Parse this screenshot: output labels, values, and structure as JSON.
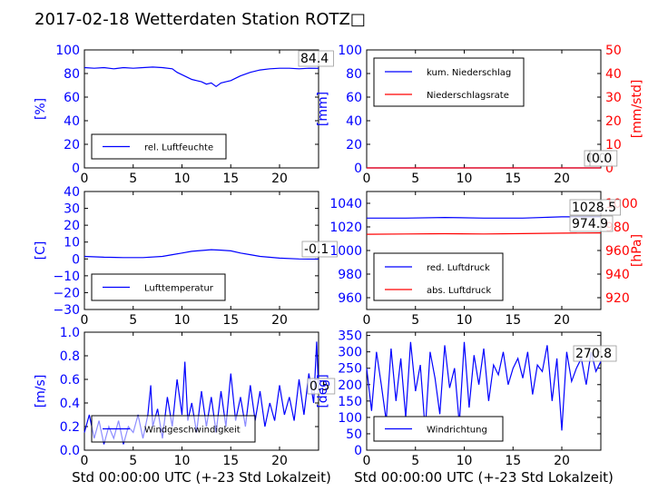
{
  "page_title": "2017-02-18 Wetterdaten Station ROTZ□",
  "colors": {
    "blue": "#0000ff",
    "red": "#ff0000",
    "black": "#000000",
    "light_blue": "#6a6aff"
  },
  "chart_data": [
    {
      "id": "humidity",
      "type": "line",
      "xlim": [
        0,
        24
      ],
      "ylim": [
        0,
        100
      ],
      "x_ticks": [
        "0",
        "5",
        "10",
        "15",
        "20"
      ],
      "y_ticks": [
        "0",
        "20",
        "40",
        "60",
        "80",
        "100"
      ],
      "ylabel": "[%]",
      "legend": [
        "rel. Luftfeuchte"
      ],
      "legend_placement": "lower-left",
      "latest_label": "84.4",
      "x": [
        0,
        1,
        2,
        3,
        4,
        5,
        6,
        7,
        8,
        9,
        9.5,
        10,
        10.5,
        11,
        11.5,
        12,
        12.5,
        13,
        13.5,
        14,
        14.5,
        15,
        15.5,
        16,
        17,
        18,
        19,
        20,
        21,
        22,
        23,
        24
      ],
      "series": [
        {
          "values": [
            85,
            84.5,
            85,
            84,
            85,
            84.5,
            85,
            85.5,
            85,
            84,
            81,
            79,
            77,
            75,
            74,
            73,
            71,
            72,
            69,
            72,
            73,
            74,
            76,
            78,
            81,
            83,
            84,
            84.5,
            84.5,
            84,
            84.5,
            84.4
          ]
        }
      ]
    },
    {
      "id": "precipitation",
      "type": "line",
      "xlim": [
        0,
        24
      ],
      "ylim": [
        0,
        100
      ],
      "ylim_right": [
        0,
        50
      ],
      "x_ticks": [
        "0",
        "5",
        "10",
        "15",
        "20"
      ],
      "y_ticks": [
        "0",
        "20",
        "40",
        "60",
        "80",
        "100"
      ],
      "y_ticks_right": [
        "0",
        "10",
        "20",
        "30",
        "40",
        "50"
      ],
      "ylabel": "[mm]",
      "ylabel_right": "[mm/std]",
      "legend": [
        "kum. Niederschlag",
        "Niederschlagsrate"
      ],
      "legend_placement": "upper-left",
      "latest_labels": [
        "0.0",
        "0.0"
      ],
      "x": [
        0,
        24
      ],
      "series": [
        {
          "values": [
            0,
            0
          ]
        },
        {
          "values": [
            0,
            0
          ]
        }
      ]
    },
    {
      "id": "temperature",
      "type": "line",
      "xlim": [
        0,
        24
      ],
      "ylim": [
        -30,
        40
      ],
      "x_ticks": [
        "0",
        "5",
        "10",
        "15",
        "20"
      ],
      "y_ticks": [
        "−30",
        "−20",
        "−10",
        "0",
        "10",
        "20",
        "30",
        "40"
      ],
      "ylabel": "[C]",
      "legend": [
        "Lufttemperatur"
      ],
      "legend_placement": "lower-left",
      "latest_label": "-0.1",
      "x": [
        0,
        2,
        4,
        6,
        8,
        9,
        10,
        11,
        12,
        13,
        14,
        15,
        16,
        17,
        18,
        20,
        22,
        24
      ],
      "series": [
        {
          "values": [
            1.5,
            1.0,
            0.8,
            0.8,
            1.5,
            2.5,
            3.5,
            4.5,
            5.0,
            5.5,
            5.2,
            4.8,
            3.5,
            2.5,
            1.5,
            0.5,
            0.0,
            -0.1
          ]
        }
      ]
    },
    {
      "id": "pressure",
      "type": "line",
      "xlim": [
        0,
        24
      ],
      "ylim": [
        950,
        1050
      ],
      "ylim_right": [
        910,
        1010
      ],
      "x_ticks": [
        "0",
        "5",
        "10",
        "15",
        "20"
      ],
      "y_ticks": [
        "960",
        "980",
        "1000",
        "1020",
        "1040"
      ],
      "y_ticks_right": [
        "920",
        "940",
        "960",
        "980",
        "1000"
      ],
      "ylabel_right": "[hPa]",
      "legend": [
        "red. Luftdruck",
        "abs. Luftdruck"
      ],
      "legend_placement": "lower-left",
      "latest_labels": [
        "1028.5",
        "974.9"
      ],
      "x": [
        0,
        4,
        8,
        12,
        16,
        20,
        24
      ],
      "series": [
        {
          "values": [
            1027.5,
            1027.5,
            1028,
            1027.5,
            1027.5,
            1028.5,
            1028.5
          ]
        },
        {
          "values": [
            973.8,
            974,
            974.2,
            974,
            974.3,
            974.7,
            974.9
          ]
        }
      ]
    },
    {
      "id": "wind_speed",
      "type": "line",
      "xlim": [
        0,
        24
      ],
      "ylim": [
        0,
        1.0
      ],
      "x_ticks": [
        "0",
        "5",
        "10",
        "15",
        "20"
      ],
      "y_ticks": [
        "0.0",
        "0.2",
        "0.4",
        "0.6",
        "0.8",
        "1.0"
      ],
      "ylabel": "[m/s]",
      "xlabel": "Std 00:00:00 UTC (+-23 Std Lokalzeit)",
      "legend": [
        "Windgeschwindigkeit"
      ],
      "legend_placement": "lower-left",
      "latest_label": "0.5",
      "x": [
        0,
        0.5,
        1,
        1.5,
        2,
        2.5,
        3,
        3.5,
        4,
        4.5,
        5,
        5.5,
        6,
        6.5,
        6.8,
        7,
        7.5,
        8,
        8.5,
        9,
        9.5,
        10,
        10.3,
        10.6,
        11,
        11.5,
        12,
        12.5,
        13,
        13.5,
        14,
        14.5,
        15,
        15.5,
        16,
        16.5,
        17,
        17.5,
        18,
        18.5,
        19,
        19.5,
        20,
        20.5,
        21,
        21.5,
        22,
        22.5,
        23,
        23.5,
        23.8,
        24
      ],
      "series": [
        {
          "values": [
            0.15,
            0.3,
            0.1,
            0.25,
            0.05,
            0.2,
            0.1,
            0.25,
            0.05,
            0.2,
            0.15,
            0.3,
            0.1,
            0.3,
            0.55,
            0.2,
            0.35,
            0.1,
            0.45,
            0.2,
            0.6,
            0.3,
            0.75,
            0.25,
            0.4,
            0.15,
            0.5,
            0.2,
            0.45,
            0.15,
            0.5,
            0.2,
            0.65,
            0.25,
            0.45,
            0.2,
            0.55,
            0.25,
            0.5,
            0.2,
            0.4,
            0.25,
            0.55,
            0.3,
            0.45,
            0.25,
            0.6,
            0.3,
            0.65,
            0.4,
            0.92,
            0.5
          ]
        }
      ]
    },
    {
      "id": "wind_direction",
      "type": "line",
      "xlim": [
        0,
        24
      ],
      "ylim": [
        0,
        360
      ],
      "x_ticks": [
        "0",
        "5",
        "10",
        "15",
        "20"
      ],
      "y_ticks": [
        "0",
        "50",
        "100",
        "150",
        "200",
        "250",
        "300",
        "350"
      ],
      "ylabel": "[deg]",
      "xlabel": "Std 00:00:00 UTC (+-23 Std Lokalzeit)",
      "legend": [
        "Windrichtung"
      ],
      "legend_placement": "lower-left",
      "latest_label": "270.8",
      "x": [
        0,
        0.5,
        1,
        1.5,
        2,
        2.5,
        3,
        3.5,
        4,
        4.5,
        5,
        5.5,
        6,
        6.5,
        7,
        7.5,
        8,
        8.5,
        9,
        9.5,
        10,
        10.5,
        11,
        11.5,
        12,
        12.5,
        13,
        13.5,
        14,
        14.5,
        15,
        15.5,
        16,
        16.5,
        17,
        17.5,
        18,
        18.5,
        19,
        19.5,
        20,
        20.5,
        21,
        21.5,
        22,
        22.5,
        23,
        23.5,
        24
      ],
      "series": [
        {
          "values": [
            250,
            120,
            300,
            200,
            90,
            310,
            150,
            280,
            100,
            330,
            180,
            260,
            60,
            300,
            220,
            110,
            320,
            190,
            250,
            80,
            330,
            130,
            290,
            200,
            310,
            150,
            260,
            230,
            300,
            200,
            250,
            280,
            220,
            300,
            170,
            260,
            240,
            320,
            150,
            280,
            60,
            300,
            210,
            250,
            280,
            200,
            300,
            240,
            270.8
          ]
        }
      ]
    }
  ]
}
